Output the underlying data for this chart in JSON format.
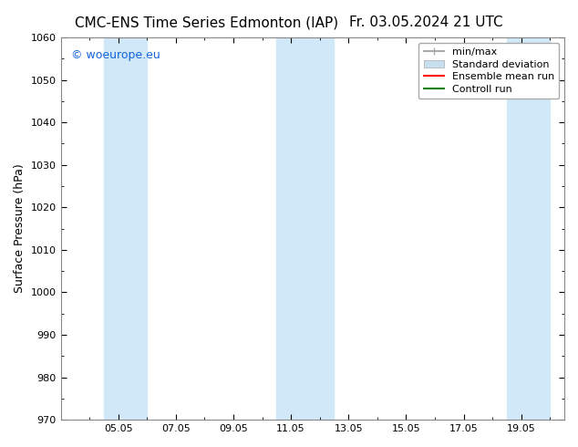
{
  "title_left": "CMC-ENS Time Series Edmonton (IAP)",
  "title_right": "Fr. 03.05.2024 21 UTC",
  "ylabel": "Surface Pressure (hPa)",
  "ylim": [
    970,
    1060
  ],
  "yticks": [
    970,
    980,
    990,
    1000,
    1010,
    1020,
    1030,
    1040,
    1050,
    1060
  ],
  "xlim_start": "2024-05-03",
  "xlim_end": "2024-05-20",
  "xtick_labels": [
    "05.05",
    "07.05",
    "09.05",
    "11.05",
    "13.05",
    "15.05",
    "17.05",
    "19.05"
  ],
  "xtick_positions": [
    2,
    4,
    6,
    8,
    10,
    12,
    14,
    16
  ],
  "watermark": "© woeurope.eu",
  "watermark_color": "#1464dc",
  "bg_color": "#ffffff",
  "plot_bg_color": "#ffffff",
  "shaded_bands": [
    {
      "xmin": 1.5,
      "xmax": 3.0,
      "color": "#d0e8f8"
    },
    {
      "xmin": 7.5,
      "xmax": 9.5,
      "color": "#d0e8f8"
    },
    {
      "xmin": 15.5,
      "xmax": 17.0,
      "color": "#d0e8f8"
    }
  ],
  "legend_items": [
    {
      "label": "min/max",
      "color": "#aaaaaa",
      "type": "errorbar"
    },
    {
      "label": "Standard deviation",
      "color": "#c8dff0",
      "type": "bar"
    },
    {
      "label": "Ensemble mean run",
      "color": "#ff0000",
      "type": "line"
    },
    {
      "label": "Controll run",
      "color": "#008000",
      "type": "line"
    }
  ],
  "title_fontsize": 11,
  "tick_fontsize": 8,
  "legend_fontsize": 8,
  "watermark_fontsize": 9
}
